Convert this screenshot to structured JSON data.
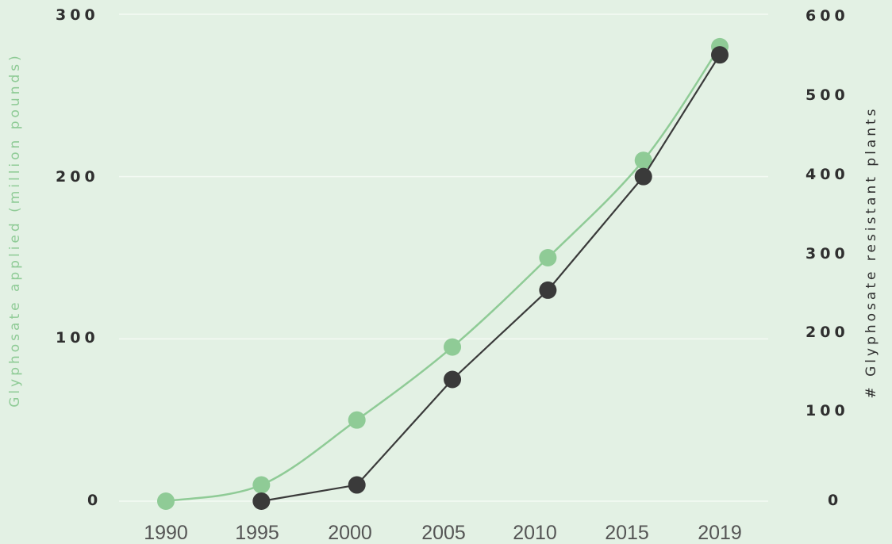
{
  "chart_data": {
    "type": "line",
    "x": [
      1990,
      1995,
      2000,
      2005,
      2010,
      2015,
      2019
    ],
    "series": [
      {
        "axis": "left",
        "color": "#8fcb96",
        "curve": "smooth",
        "values": [
          0,
          10,
          50,
          95,
          150,
          210,
          280
        ]
      },
      {
        "axis": "right",
        "color": "#3a3a3a",
        "curve": "straight",
        "values": [
          null,
          0,
          20,
          150,
          260,
          400,
          550
        ]
      }
    ],
    "ylabel_left": "Glyphosate applied (million pounds)",
    "ylabel_right": "# Glyphosate resistant plants",
    "ylim_left": [
      0,
      300
    ],
    "ylim_right": [
      0,
      600
    ],
    "yticks_left": [
      "300",
      "200",
      "100",
      "0"
    ],
    "yticks_right": [
      "600",
      "500",
      "400",
      "300",
      "200",
      "100",
      "0"
    ],
    "xticks": [
      "1990",
      "1995",
      "2000",
      "2005",
      "2010",
      "2015",
      "2019"
    ],
    "grid": true,
    "legend": "none"
  }
}
